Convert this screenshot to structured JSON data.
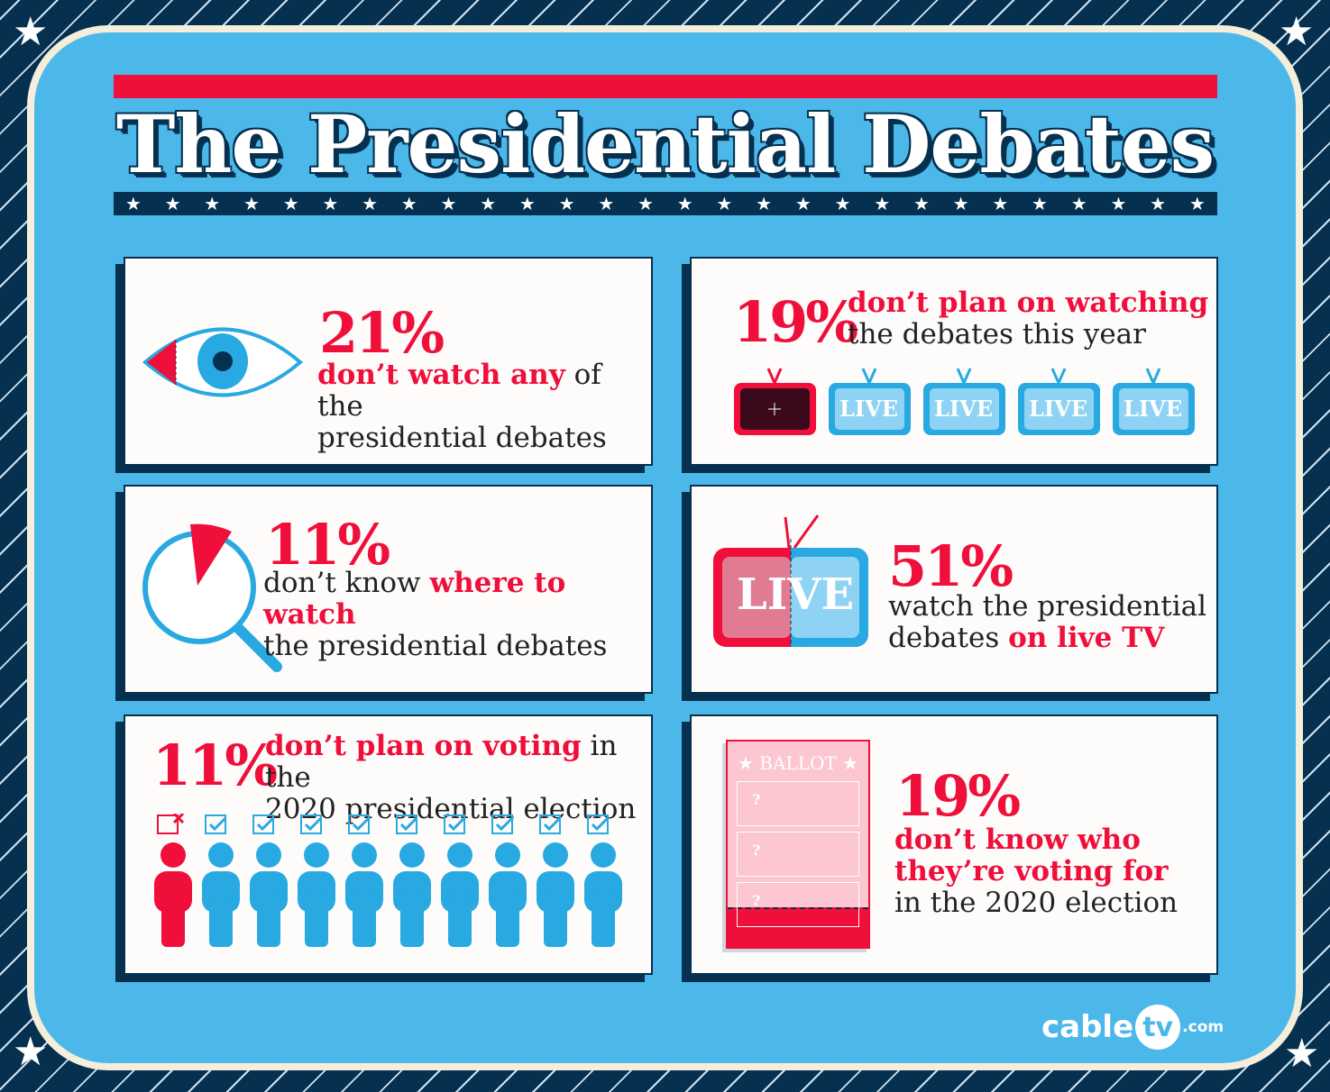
{
  "title": "The Presidential Debates",
  "colors": {
    "background_blue": "#4cb8ea",
    "navy": "#05304f",
    "red": "#f00e3a",
    "card": "#fdfcfa"
  },
  "cards": [
    {
      "icon": "eye-icon",
      "percent": "21%",
      "highlight": "don’t watch any",
      "rest1": "of the",
      "rest2": "presidential debates",
      "value": 21
    },
    {
      "icon": "tv-icons",
      "percent": "19%",
      "highlight": "don’t plan on watching",
      "rest1": "the debates this year",
      "tv_label": "LIVE",
      "value": 19
    },
    {
      "icon": "magnifier-icon",
      "percent": "11%",
      "pre": "don’t know",
      "highlight": "where to watch",
      "rest1": "the presidential debates",
      "value": 11
    },
    {
      "icon": "live-tv-icon",
      "percent": "51%",
      "rest1": "watch the presidential",
      "pre2": "debates",
      "highlight": "on live TV",
      "tv_label": "LIVE",
      "value": 51
    },
    {
      "icon": "people-icons",
      "percent": "11%",
      "highlight": "don’t plan on voting",
      "rest1": "in the",
      "rest2": "2020 presidential election",
      "value": 11
    },
    {
      "icon": "ballot-icon",
      "percent": "19%",
      "highlight1": "don’t know who",
      "highlight2": "they’re voting for",
      "rest1": "in the 2020 election",
      "ballot_label": "★ BALLOT ★",
      "value": 19
    }
  ],
  "logo": {
    "name": "cable",
    "tv": "tv",
    "suffix": ".com"
  }
}
